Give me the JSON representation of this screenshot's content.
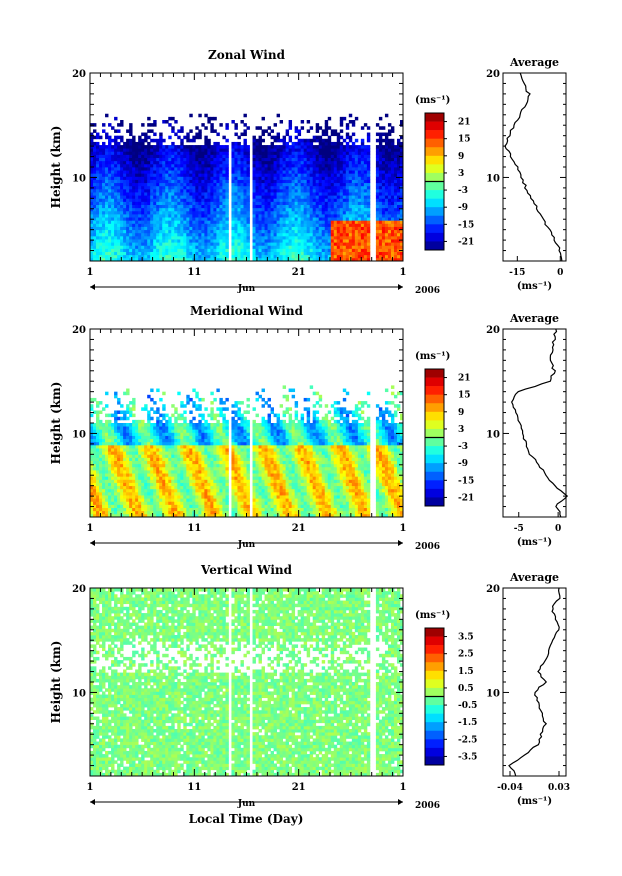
{
  "chart_data": [
    {
      "type": "heatmap",
      "title": "Zonal Wind",
      "ylabel": "Height (km)",
      "xlabel": "Jun",
      "year": "2006",
      "ylim": [
        2,
        20
      ],
      "yticks": [
        "10",
        "20"
      ],
      "xticks": [
        "1",
        "11",
        "21",
        "1"
      ],
      "colorbar": {
        "unit": "(ms⁻¹)",
        "ticks": [
          "21",
          "15",
          "9",
          "3",
          "-3",
          "-9",
          "-15",
          "-21"
        ],
        "range": [
          -24,
          24
        ]
      },
      "gaps_days": [
        [
          14.2,
          14.6
        ],
        [
          16.2,
          16.7
        ],
        [
          27.9,
          28.4
        ]
      ],
      "average": {
        "title": "Average",
        "xlabel": "(ms⁻¹)",
        "xticks": [
          "-15",
          "0"
        ],
        "xlim": [
          -20,
          2
        ],
        "height": [
          2,
          3,
          4,
          5,
          6,
          7,
          8,
          9,
          10,
          11,
          12,
          13,
          14,
          15,
          16,
          17,
          18,
          19,
          20
        ],
        "value": [
          1,
          0,
          -2,
          -4,
          -6,
          -8,
          -10,
          -12,
          -13.5,
          -15,
          -17,
          -19,
          -18,
          -16,
          -14,
          -12,
          -11,
          -13,
          -14
        ]
      }
    },
    {
      "type": "heatmap",
      "title": "Meridional Wind",
      "ylabel": "Height (km)",
      "xlabel": "Jun",
      "year": "2006",
      "ylim": [
        2,
        20
      ],
      "yticks": [
        "10",
        "20"
      ],
      "xticks": [
        "1",
        "11",
        "21",
        "1"
      ],
      "colorbar": {
        "unit": "(ms⁻¹)",
        "ticks": [
          "21",
          "15",
          "9",
          "3",
          "-3",
          "-9",
          "-15",
          "-21"
        ],
        "range": [
          -24,
          24
        ]
      },
      "gaps_days": [
        [
          14.2,
          14.6
        ],
        [
          16.2,
          16.7
        ],
        [
          27.9,
          28.4
        ]
      ],
      "average": {
        "title": "Average",
        "xlabel": "(ms⁻¹)",
        "xticks": [
          "-5",
          "0"
        ],
        "xlim": [
          -7,
          1
        ],
        "height": [
          2,
          3,
          4,
          5,
          6,
          7,
          8,
          9,
          10,
          11,
          12,
          13,
          14,
          15,
          16,
          17,
          18,
          19,
          20
        ],
        "value": [
          0.5,
          -0.3,
          1,
          -0.5,
          -1.5,
          -2.5,
          -3.5,
          -4,
          -4.5,
          -4.8,
          -5.3,
          -6,
          -5,
          -1,
          -0.5,
          -1,
          -0.8,
          -0.5,
          -0.3
        ]
      }
    },
    {
      "type": "heatmap",
      "title": "Vertical Wind",
      "ylabel": "Height (km)",
      "xlabel": "Jun",
      "year": "2006",
      "ylim": [
        2,
        20
      ],
      "yticks": [
        "10",
        "20"
      ],
      "xticks": [
        "1",
        "11",
        "21",
        "1"
      ],
      "colorbar": {
        "unit": "(ms⁻¹)",
        "ticks": [
          "3.5",
          "2.5",
          "1.5",
          "0.5",
          "-0.5",
          "-1.5",
          "-2.5",
          "-3.5"
        ],
        "range": [
          -4,
          4
        ]
      },
      "gaps_days": [
        [
          14.2,
          14.6
        ],
        [
          16.2,
          16.7
        ],
        [
          27.9,
          28.4
        ]
      ],
      "average": {
        "title": "Average",
        "xlabel": "(ms⁻¹)",
        "xticks": [
          "-0.04",
          "0.03"
        ],
        "xlim": [
          -0.05,
          0.04
        ],
        "height": [
          2,
          3,
          4,
          5,
          6,
          7,
          8,
          9,
          10,
          11,
          12,
          13,
          14,
          15,
          16,
          17,
          18,
          19,
          20
        ],
        "value": [
          -0.03,
          -0.04,
          -0.02,
          0,
          0.005,
          0.01,
          0.005,
          0,
          -0.005,
          0.01,
          0.0,
          0.01,
          0.015,
          0.02,
          0.03,
          0.025,
          0.02,
          0.03,
          0.03
        ]
      }
    }
  ],
  "footer": {
    "xlabel": "Local Time (Day)"
  }
}
